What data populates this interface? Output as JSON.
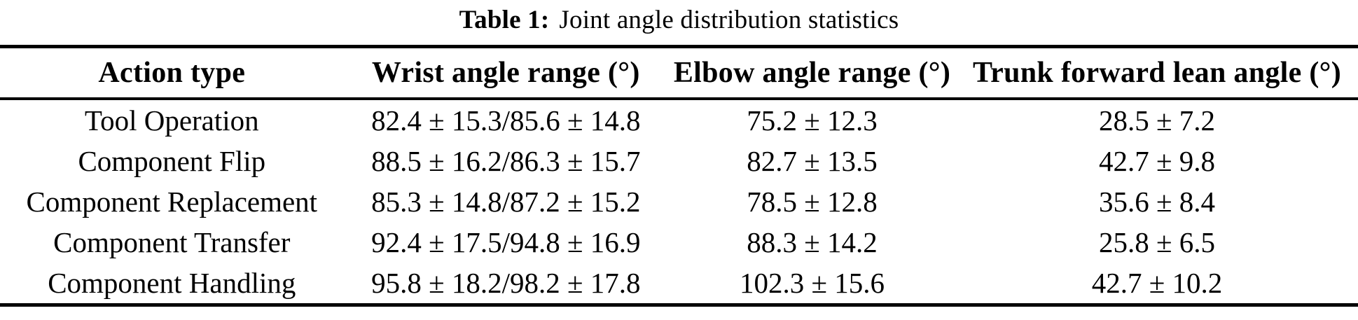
{
  "caption": {
    "label": "Table 1:",
    "title": "Joint angle distribution statistics"
  },
  "table": {
    "columns": [
      "Action type",
      "Wrist angle range (°)",
      "Elbow angle range (°)",
      "Trunk forward lean angle (°)"
    ],
    "rows": [
      [
        "Tool Operation",
        "82.4 ± 15.3/85.6 ± 14.8",
        "75.2 ± 12.3",
        "28.5 ± 7.2"
      ],
      [
        "Component Flip",
        "88.5 ± 16.2/86.3 ± 15.7",
        "82.7 ± 13.5",
        "42.7 ± 9.8"
      ],
      [
        "Component Replacement",
        "85.3 ± 14.8/87.2 ± 15.2",
        "78.5 ± 12.8",
        "35.6 ± 8.4"
      ],
      [
        "Component Transfer",
        "92.4 ± 17.5/94.8 ± 16.9",
        "88.3 ± 14.2",
        "25.8 ± 6.5"
      ],
      [
        "Component Handling",
        "95.8 ± 18.2/98.2 ± 17.8",
        "102.3 ± 15.6",
        "42.7 ± 10.2"
      ]
    ]
  },
  "colors": {
    "text": "#000000",
    "background": "#ffffff",
    "rule": "#000000"
  }
}
